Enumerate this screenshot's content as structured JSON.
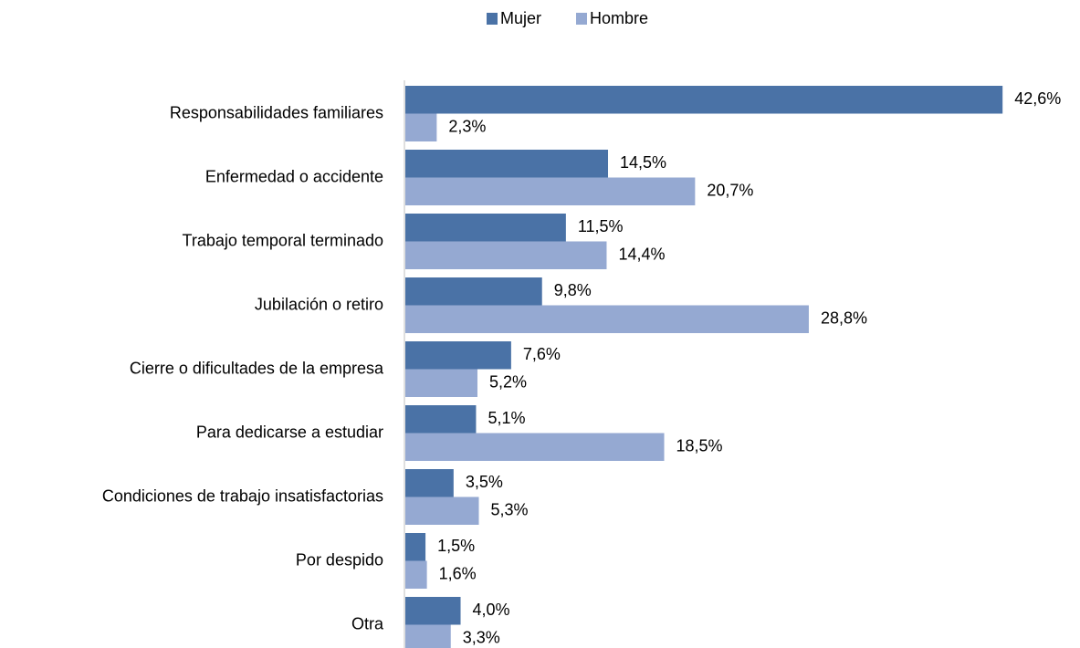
{
  "chart_data": {
    "type": "hbar",
    "categories": [
      "Responsabilidades familiares",
      "Enfermedad o accidente",
      "Trabajo temporal terminado",
      "Jubilación o retiro",
      "Cierre o dificultades de la empresa",
      "Para dedicarse a estudiar",
      "Condiciones de trabajo insatisfactorias",
      "Por despido",
      "Otra"
    ],
    "series": [
      {
        "name": "Mujer",
        "color": "#4a72a6",
        "values": [
          42.6,
          14.5,
          11.5,
          9.8,
          7.6,
          5.1,
          3.5,
          1.5,
          4.0
        ],
        "value_labels": [
          "42,6%",
          "14,5%",
          "11,5%",
          "9,8%",
          "7,6%",
          "5,1%",
          "3,5%",
          "1,5%",
          "4,0%"
        ]
      },
      {
        "name": "Hombre",
        "color": "#95a9d2",
        "values": [
          2.3,
          20.7,
          14.4,
          28.8,
          5.2,
          18.5,
          5.3,
          1.6,
          3.3
        ],
        "value_labels": [
          "2,3%",
          "20,7%",
          "14,4%",
          "28,8%",
          "5,2%",
          "18,5%",
          "5,3%",
          "1,6%",
          "3,3%"
        ]
      }
    ],
    "legend": "top"
  }
}
